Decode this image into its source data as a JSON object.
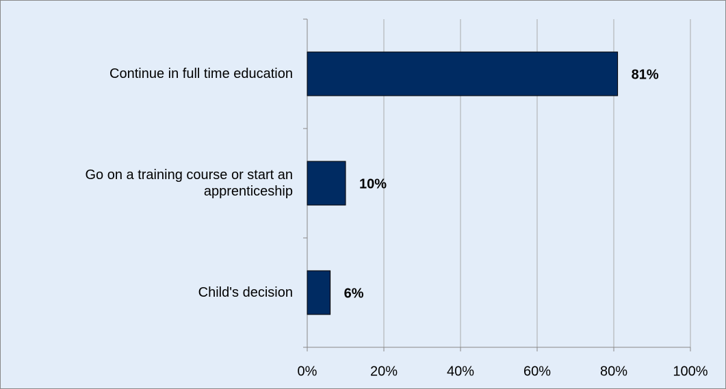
{
  "chart_data": {
    "type": "bar",
    "orientation": "horizontal",
    "categories": [
      "Continue in full time education",
      "Go on a training course or start an apprenticeship",
      "Child's decision"
    ],
    "values": [
      81,
      10,
      6
    ],
    "value_labels": [
      "81%",
      "10%",
      "6%"
    ],
    "color": "#002b62",
    "xlim": [
      0,
      100
    ],
    "xticks": [
      {
        "value": 0,
        "label": "0%"
      },
      {
        "value": 20,
        "label": "20%"
      },
      {
        "value": 40,
        "label": "40%"
      },
      {
        "value": 60,
        "label": "60%"
      },
      {
        "value": 80,
        "label": "80%"
      },
      {
        "value": 100,
        "label": "100%"
      }
    ],
    "grid": true
  }
}
